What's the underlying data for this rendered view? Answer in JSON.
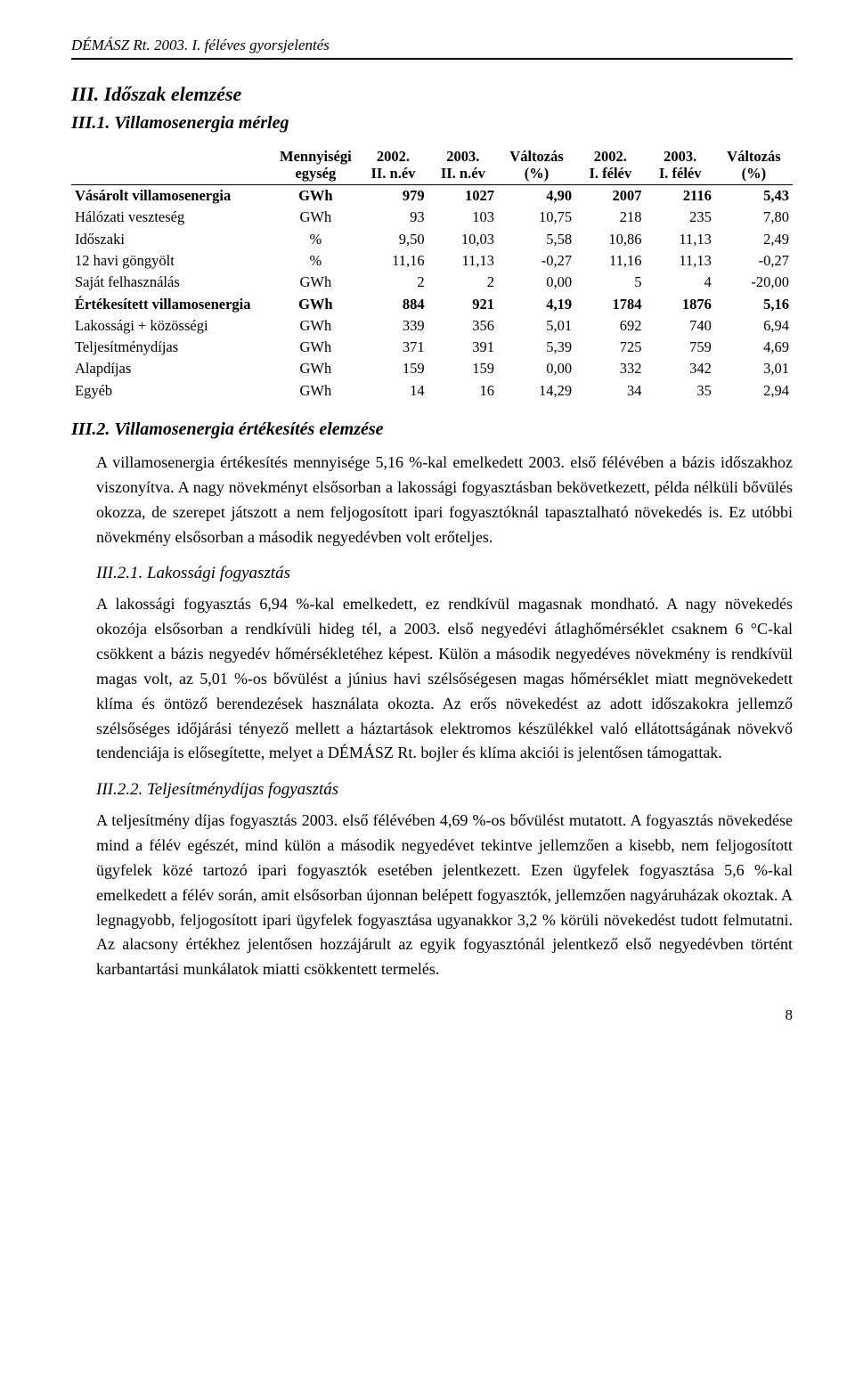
{
  "running_header": "DÉMÁSZ Rt. 2003. I. féléves gyorsjelentés",
  "section": {
    "title": "III. Időszak elemzése",
    "sub1": "III.1. Villamosenergia mérleg",
    "sub2": "III.2. Villamosenergia értékesítés elemzése",
    "sub21": "III.2.1. Lakossági fogyasztás",
    "sub22": "III.2.2. Teljesítménydíjas fogyasztás"
  },
  "table": {
    "type": "table",
    "font_size": 16.5,
    "border_color": "#000000",
    "columns": [
      {
        "key": "label",
        "line1": "",
        "line2": "",
        "align": "left",
        "width": "26%"
      },
      {
        "key": "unit",
        "line1": "Mennyiségi",
        "line2": "egység",
        "align": "center",
        "width": "11%"
      },
      {
        "key": "y2002q2",
        "line1": "2002.",
        "line2": "II. n.év",
        "align": "right",
        "width": "9%"
      },
      {
        "key": "y2003q2",
        "line1": "2003.",
        "line2": "II. n.év",
        "align": "right",
        "width": "9%"
      },
      {
        "key": "chg_q",
        "line1": "Változás",
        "line2": "(%)",
        "align": "right",
        "width": "10%"
      },
      {
        "key": "y2002h1",
        "line1": "2002.",
        "line2": "I. félév",
        "align": "right",
        "width": "9%"
      },
      {
        "key": "y2003h1",
        "line1": "2003.",
        "line2": "I. félév",
        "align": "right",
        "width": "9%"
      },
      {
        "key": "chg_h",
        "line1": "Változás",
        "line2": "(%)",
        "align": "right",
        "width": "10%"
      }
    ],
    "rows": [
      {
        "bold": true,
        "indent": 0,
        "label": "Vásárolt villamosenergia",
        "unit": "GWh",
        "y2002q2": "979",
        "y2003q2": "1027",
        "chg_q": "4,90",
        "y2002h1": "2007",
        "y2003h1": "2116",
        "chg_h": "5,43"
      },
      {
        "bold": false,
        "indent": 1,
        "label": "Hálózati veszteség",
        "unit": "GWh",
        "y2002q2": "93",
        "y2003q2": "103",
        "chg_q": "10,75",
        "y2002h1": "218",
        "y2003h1": "235",
        "chg_h": "7,80"
      },
      {
        "bold": false,
        "indent": 2,
        "label": "Időszaki",
        "unit": "%",
        "y2002q2": "9,50",
        "y2003q2": "10,03",
        "chg_q": "5,58",
        "y2002h1": "10,86",
        "y2003h1": "11,13",
        "chg_h": "2,49"
      },
      {
        "bold": false,
        "indent": 2,
        "label": "12 havi göngyölt",
        "unit": "%",
        "y2002q2": "11,16",
        "y2003q2": "11,13",
        "chg_q": "-0,27",
        "y2002h1": "11,16",
        "y2003h1": "11,13",
        "chg_h": "-0,27"
      },
      {
        "bold": false,
        "indent": 1,
        "label": "Saját felhasználás",
        "unit": "GWh",
        "y2002q2": "2",
        "y2003q2": "2",
        "chg_q": "0,00",
        "y2002h1": "5",
        "y2003h1": "4",
        "chg_h": "-20,00"
      },
      {
        "bold": true,
        "indent": 0,
        "label": "Értékesített villamosenergia",
        "unit": "GWh",
        "y2002q2": "884",
        "y2003q2": "921",
        "chg_q": "4,19",
        "y2002h1": "1784",
        "y2003h1": "1876",
        "chg_h": "5,16"
      },
      {
        "bold": false,
        "indent": 1,
        "label": "Lakossági + közösségi",
        "unit": "GWh",
        "y2002q2": "339",
        "y2003q2": "356",
        "chg_q": "5,01",
        "y2002h1": "692",
        "y2003h1": "740",
        "chg_h": "6,94"
      },
      {
        "bold": false,
        "indent": 1,
        "label": "Teljesítménydíjas",
        "unit": "GWh",
        "y2002q2": "371",
        "y2003q2": "391",
        "chg_q": "5,39",
        "y2002h1": "725",
        "y2003h1": "759",
        "chg_h": "4,69"
      },
      {
        "bold": false,
        "indent": 1,
        "label": "Alapdíjas",
        "unit": "GWh",
        "y2002q2": "159",
        "y2003q2": "159",
        "chg_q": "0,00",
        "y2002h1": "332",
        "y2003h1": "342",
        "chg_h": "3,01"
      },
      {
        "bold": false,
        "indent": 1,
        "label": "Egyéb",
        "unit": "GWh",
        "y2002q2": "14",
        "y2003q2": "16",
        "chg_q": "14,29",
        "y2002h1": "34",
        "y2003h1": "35",
        "chg_h": "2,94"
      }
    ]
  },
  "para": {
    "p2_intro": "A villamosenergia értékesítés mennyisége 5,16 %-kal emelkedett 2003. első félévében a bázis időszakhoz viszonyítva. A nagy növekményt elsősorban a lakossági fogyasztásban bekövetkezett, példa nélküli bővülés okozza, de szerepet játszott a nem feljogosított ipari fogyasztóknál tapasztalható növekedés is. Ez utóbbi növekmény elsősorban a második negyedévben volt erőteljes.",
    "p21": "A lakossági fogyasztás 6,94 %-kal emelkedett, ez rendkívül magasnak mondható. A nagy növekedés okozója elsősorban a rendkívüli hideg tél, a 2003. első negyedévi átlaghőmérséklet csaknem 6 °C-kal csökkent a bázis negyedév hőmérsékletéhez képest. Külön a második negyedéves növekmény is rendkívül magas volt, az 5,01 %-os bővülést a június havi szélsőségesen magas hőmérséklet miatt megnövekedett klíma és öntöző berendezések használata okozta. Az erős növekedést az adott időszakokra jellemző szélsőséges időjárási tényező mellett a háztartások elektromos készülékkel való ellátottságának növekvő tendenciája is elősegítette, melyet a DÉMÁSZ Rt. bojler és klíma akciói is jelentősen támogattak.",
    "p22": "A teljesítmény díjas fogyasztás 2003. első félévében 4,69 %-os bővülést mutatott. A fogyasztás növekedése mind a félév egészét, mind külön a második negyedévet tekintve jellemzően a kisebb, nem feljogosított ügyfelek közé tartozó ipari fogyasztók esetében jelentkezett. Ezen ügyfelek fogyasztása 5,6 %-kal emelkedett a félév során, amit elsősorban újonnan belépett fogyasztók, jellemzően nagyáruházak okoztak. A legnagyobb, feljogosított ipari ügyfelek fogyasztása ugyanakkor 3,2 % körüli növekedést tudott felmutatni. Az alacsony értékhez jelentősen hozzájárult az egyik fogyasztónál jelentkező első negyedévben történt karbantartási munkálatok miatti csökkentett termelés."
  },
  "page_number": "8",
  "style": {
    "background_color": "#ffffff",
    "text_color": "#000000",
    "body_font_size": 18,
    "font_family": "Times New Roman"
  }
}
